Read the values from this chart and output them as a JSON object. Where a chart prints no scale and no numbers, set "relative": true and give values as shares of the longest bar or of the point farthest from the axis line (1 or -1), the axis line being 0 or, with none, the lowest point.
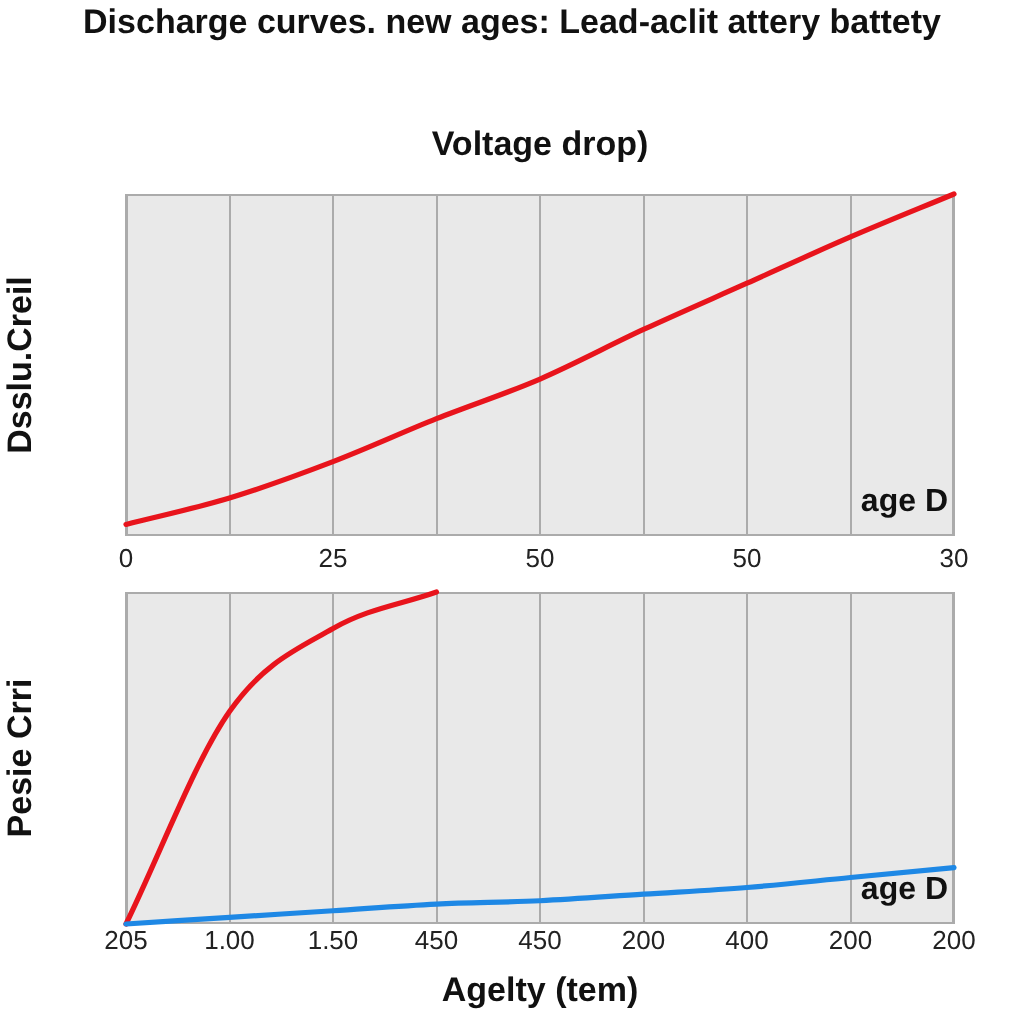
{
  "chart_data": [
    {
      "type": "line",
      "title": "Discharge curves. new ages: Lead-aclit attery battety",
      "x2label": "Voltage drop)",
      "ylabel": "Dsslu.Creil",
      "annotations": [
        "age D"
      ],
      "categories": [
        "0",
        null,
        "25",
        null,
        "50",
        null,
        "50",
        null,
        "30"
      ],
      "series": [
        {
          "color": "#e8141c",
          "values": [
            0,
            0.08,
            0.19,
            0.32,
            0.44,
            0.59,
            0.73,
            0.87,
            1
          ]
        }
      ],
      "relative": true,
      "grid": "x"
    },
    {
      "type": "line",
      "xlabel": "Agelty (tem)",
      "ylabel": "Pesie Crri",
      "annotations": [
        "age D"
      ],
      "categories": [
        "205",
        "1.00",
        "1.50",
        "450",
        "450",
        "200",
        "400",
        "200",
        "200"
      ],
      "series": [
        {
          "color": "#e8141c",
          "values": [
            0,
            0.64,
            0.89,
            1,
            null,
            null,
            null,
            null,
            null
          ]
        },
        {
          "color": "#1e88e5",
          "values": [
            0,
            0.02,
            0.04,
            0.06,
            0.07,
            0.09,
            0.11,
            0.14,
            0.17
          ]
        }
      ],
      "relative": true,
      "grid": "x"
    }
  ]
}
